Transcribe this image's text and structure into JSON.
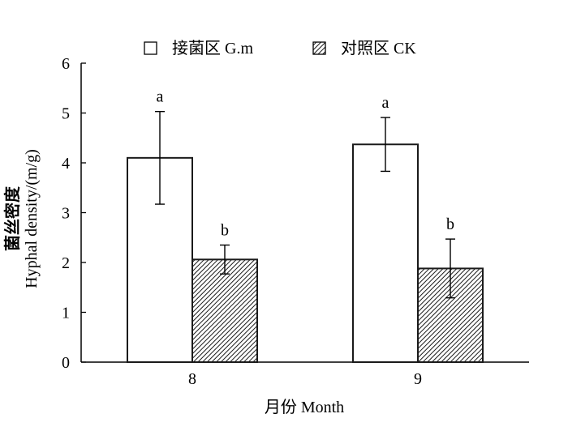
{
  "chart_data": {
    "type": "bar",
    "categories": [
      "8",
      "9"
    ],
    "series": [
      {
        "name": "接菌区 G.m",
        "values": [
          4.1,
          4.37
        ],
        "error": [
          0.93,
          0.54
        ],
        "labels": [
          "a",
          "a"
        ],
        "fill": "open"
      },
      {
        "name": "对照区 CK",
        "values": [
          2.06,
          1.88
        ],
        "error": [
          0.29,
          0.59
        ],
        "labels": [
          "b",
          "b"
        ],
        "fill": "hatched"
      }
    ],
    "xlabel": "月份 Month",
    "ylabel_cn": "菌丝密度",
    "ylabel": "Hyphal density/(m/g)",
    "ylim": [
      0,
      6
    ],
    "yticks": [
      "0",
      "1",
      "2",
      "3",
      "4",
      "5",
      "6"
    ],
    "legend_position": "top-center",
    "grid": false,
    "colors": {
      "axis": "#000000",
      "bar_edge": "#1a1a1a",
      "open_fill": "#ffffff"
    }
  }
}
